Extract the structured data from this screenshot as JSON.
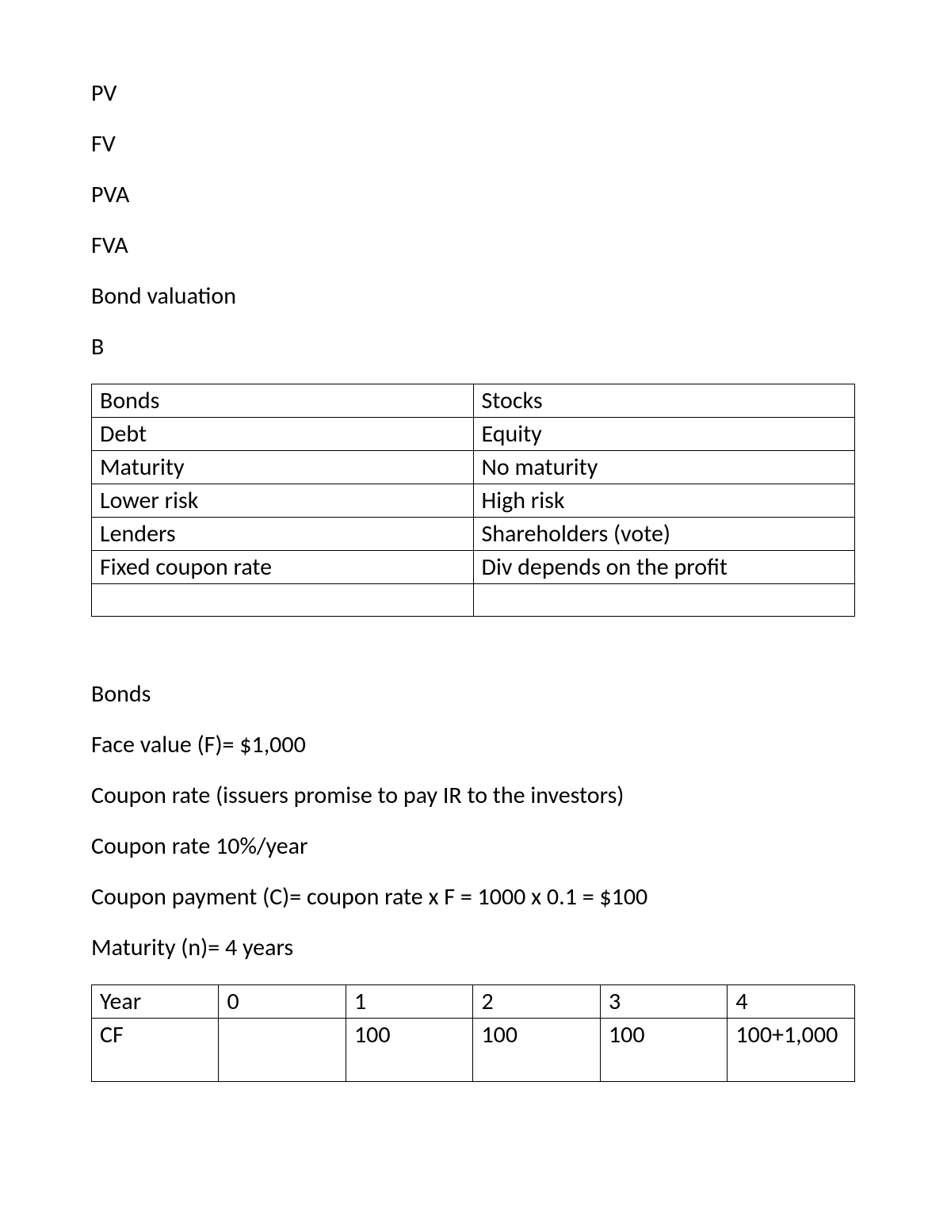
{
  "terms": {
    "pv": "PV",
    "fv": "FV",
    "pva": "PVA",
    "fva": "FVA",
    "bond_valuation": "Bond valuation",
    "b": "B"
  },
  "comparison_table": {
    "rows": [
      {
        "left": "Bonds",
        "right": "Stocks"
      },
      {
        "left": "Debt",
        "right": "Equity"
      },
      {
        "left": "Maturity",
        "right": "No maturity"
      },
      {
        "left": "Lower risk",
        "right": "High risk"
      },
      {
        "left": "Lenders",
        "right": "Shareholders (vote)"
      },
      {
        "left": "Fixed coupon rate",
        "right": "Div depends on the profit"
      },
      {
        "left": "",
        "right": ""
      }
    ]
  },
  "bonds_section": {
    "heading": "Bonds",
    "face_value": "Face value (F)= $1,000",
    "coupon_rate_desc": "Coupon rate (issuers promise to pay IR to the investors)",
    "coupon_rate": "Coupon rate 10%/year",
    "coupon_payment": "Coupon payment (C)= coupon rate x F = 1000 x 0.1 = $100",
    "maturity": "Maturity (n)= 4 years"
  },
  "cf_table": {
    "header": [
      "Year",
      "0",
      "1",
      "2",
      "3",
      "4"
    ],
    "row": [
      "CF",
      "",
      "100",
      "100",
      "100",
      "100+1,000"
    ]
  }
}
